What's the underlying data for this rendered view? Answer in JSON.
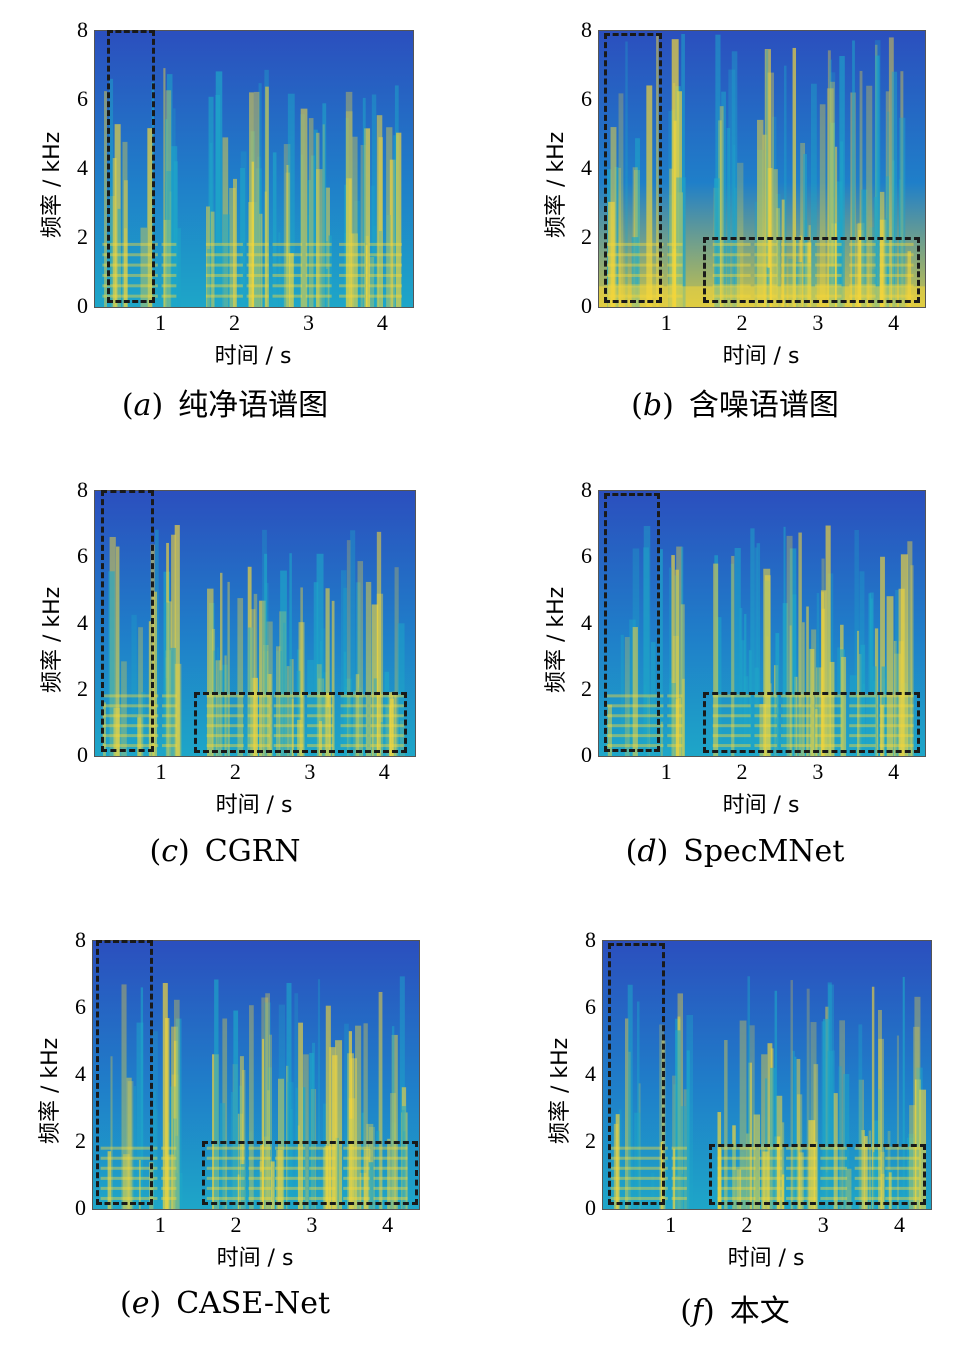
{
  "colors": {
    "background_low": "#2e44c0",
    "mid": "#1ea6c8",
    "high": "#f4d63a",
    "box": "#1a1a1a"
  },
  "chart_data": [
    {
      "type": "heatmap",
      "caption": {
        "letter": "a",
        "text": "纯净语谱图"
      },
      "xlabel": "时间 / s",
      "ylabel": "频率 / kHz",
      "xticks": [
        "1",
        "2",
        "3",
        "4"
      ],
      "yticks": [
        "0",
        "2",
        "4",
        "6",
        "8"
      ],
      "xlim": [
        0.1,
        4.4
      ],
      "ylim": [
        0,
        8
      ],
      "noise": false,
      "boxes": [
        {
          "t0": 0.27,
          "t1": 0.93,
          "f0": 0.1,
          "f1": 8.0
        }
      ]
    },
    {
      "type": "heatmap",
      "caption": {
        "letter": "b",
        "text": "含噪语谱图"
      },
      "xlabel": "时间 / s",
      "ylabel": "频率 / kHz",
      "xticks": [
        "1",
        "2",
        "3",
        "4"
      ],
      "yticks": [
        "0",
        "2",
        "4",
        "6",
        "8"
      ],
      "xlim": [
        0.1,
        4.4
      ],
      "ylim": [
        0,
        8
      ],
      "noise": true,
      "boxes": [
        {
          "t0": 0.18,
          "t1": 0.95,
          "f0": 0.1,
          "f1": 7.9
        },
        {
          "t0": 1.48,
          "t1": 4.35,
          "f0": 0.1,
          "f1": 2.0
        }
      ]
    },
    {
      "type": "heatmap",
      "caption": {
        "letter": "c",
        "text": "CGRN"
      },
      "xlabel": "时间 / s",
      "ylabel": "频率 / kHz",
      "xticks": [
        "1",
        "2",
        "3",
        "4"
      ],
      "yticks": [
        "0",
        "2",
        "4",
        "6",
        "8"
      ],
      "xlim": [
        0.1,
        4.4
      ],
      "ylim": [
        0,
        8
      ],
      "noise": false,
      "boxes": [
        {
          "t0": 0.2,
          "t1": 0.9,
          "f0": 0.1,
          "f1": 8.0
        },
        {
          "t0": 1.45,
          "t1": 4.3,
          "f0": 0.05,
          "f1": 1.9
        }
      ]
    },
    {
      "type": "heatmap",
      "caption": {
        "letter": "d",
        "text": "SpecMNet"
      },
      "xlabel": "时间 / s",
      "ylabel": "频率 / kHz",
      "xticks": [
        "1",
        "2",
        "3",
        "4"
      ],
      "yticks": [
        "0",
        "2",
        "4",
        "6",
        "8"
      ],
      "xlim": [
        0.1,
        4.4
      ],
      "ylim": [
        0,
        8
      ],
      "noise": false,
      "boxes": [
        {
          "t0": 0.18,
          "t1": 0.92,
          "f0": 0.1,
          "f1": 7.9
        },
        {
          "t0": 1.48,
          "t1": 4.35,
          "f0": 0.05,
          "f1": 1.9
        }
      ]
    },
    {
      "type": "heatmap",
      "caption": {
        "letter": "e",
        "text": "CASE-Net"
      },
      "xlabel": "时间 / s",
      "ylabel": "频率 / kHz",
      "xticks": [
        "1",
        "2",
        "3",
        "4"
      ],
      "yticks": [
        "0",
        "2",
        "4",
        "6",
        "8"
      ],
      "xlim": [
        0.1,
        4.4
      ],
      "ylim": [
        0,
        8
      ],
      "noise": false,
      "boxes": [
        {
          "t0": 0.15,
          "t1": 0.9,
          "f0": 0.1,
          "f1": 8.0
        },
        {
          "t0": 1.55,
          "t1": 4.4,
          "f0": 0.1,
          "f1": 2.0
        }
      ]
    },
    {
      "type": "heatmap",
      "caption": {
        "letter": "f",
        "text": "本文"
      },
      "xlabel": "时间 / s",
      "ylabel": "频率 / kHz",
      "xticks": [
        "1",
        "2",
        "3",
        "4"
      ],
      "yticks": [
        "0",
        "2",
        "4",
        "6",
        "8"
      ],
      "xlim": [
        0.1,
        4.4
      ],
      "ylim": [
        0,
        8
      ],
      "noise": false,
      "boxes": [
        {
          "t0": 0.18,
          "t1": 0.92,
          "f0": 0.1,
          "f1": 7.9
        },
        {
          "t0": 1.5,
          "t1": 4.35,
          "f0": 0.1,
          "f1": 1.9
        }
      ]
    }
  ]
}
